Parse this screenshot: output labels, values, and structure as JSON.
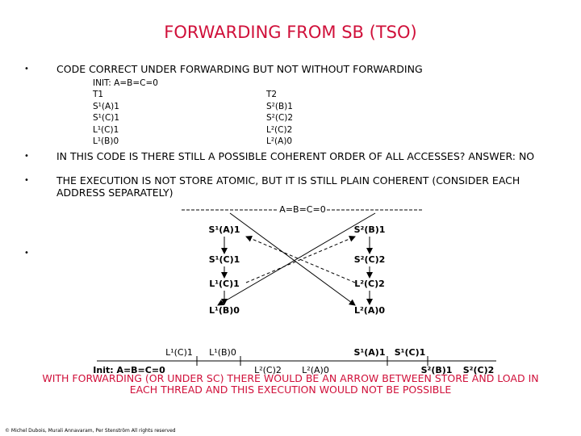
{
  "header": {
    "title": "FORWARDING FROM SB (TSO)"
  },
  "bullets": [
    "CODE CORRECT UNDER FORWARDING BUT NOT WITHOUT FORWARDING",
    "IN THIS CODE IS THERE STILL A POSSIBLE COHERENT ORDER OF ALL ACCESSES? ANSWER: NO",
    "THE EXECUTION IS NOT STORE ATOMIC, BUT IT IS STILL PLAIN COHERENT (CONSIDER EACH ADDRESS SEPARATELY)"
  ],
  "code": {
    "init": "INIT: A=B=C=0",
    "t1": [
      "T1",
      "S¹(A)1",
      "S¹(C)1",
      "L¹(C)1",
      "L¹(B)0"
    ],
    "t2": [
      "T2",
      "S²(B)1",
      "S²(C)2",
      "L²(C)2",
      "L²(A)0"
    ]
  },
  "diagram": {
    "init": "A=B=C=0",
    "thread1": [
      "S¹(A)1",
      "S¹(C)1",
      "L¹(C)1",
      "L¹(B)0"
    ],
    "thread2": [
      "S²(B)1",
      "S²(C)2",
      "L²(C)2",
      "L²(A)0"
    ],
    "timeline_above": [
      "L¹(C)1",
      "L¹(B)0",
      "S¹(A)1",
      "S¹(C)1"
    ],
    "timeline_below": [
      "Init: A=B=C=0",
      "L²(C)2",
      "L²(A)0",
      "S²(B)1",
      "S²(C)2"
    ]
  },
  "note": "WITH FORWARDING (OR UNDER SC) THERE WOULD BE AN ARROW BETWEEN STORE AND LOAD IN EACH THREAD AND THIS EXECUTION WOULD NOT BE POSSIBLE",
  "footer": "© Michel Dubois, Murali Annavaram, Per Stenström All rights reserved"
}
